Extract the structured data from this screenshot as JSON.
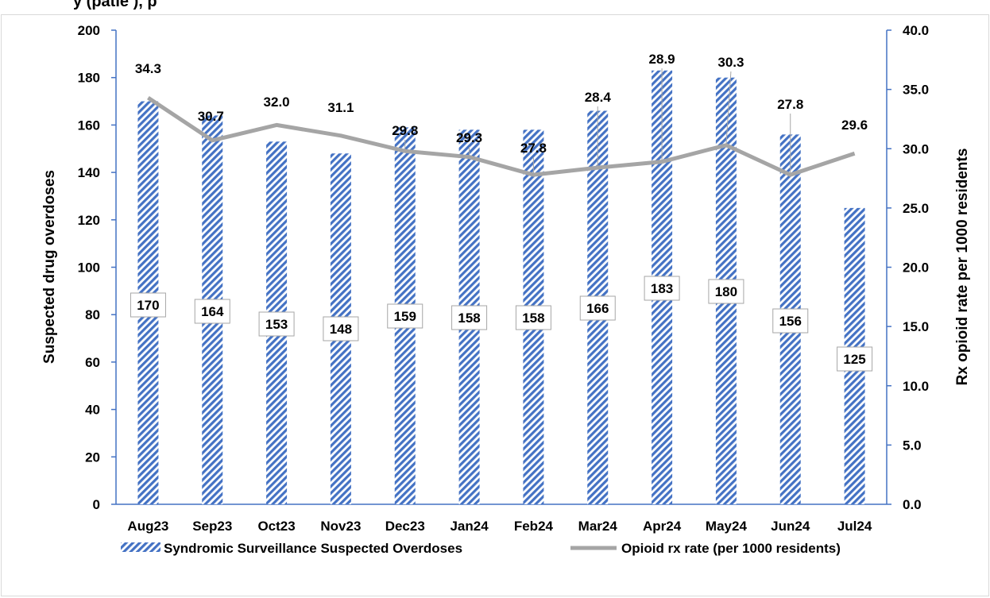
{
  "top_title_fragment": "y (patie         ), p",
  "chart_data": {
    "type": "bar",
    "categories": [
      "Aug23",
      "Sep23",
      "Oct23",
      "Nov23",
      "Dec23",
      "Jan24",
      "Feb24",
      "Mar24",
      "Apr24",
      "May24",
      "Jun24",
      "Jul24"
    ],
    "series": [
      {
        "name": "Syndromic Surveillance Suspected Overdoses",
        "type": "bar",
        "axis": "left",
        "values": [
          170,
          164,
          153,
          148,
          159,
          158,
          158,
          166,
          183,
          180,
          156,
          125
        ],
        "color": "#4472C4"
      },
      {
        "name": "Opioid rx rate (per 1000 residents)",
        "type": "line",
        "axis": "right",
        "values": [
          34.3,
          30.7,
          32.0,
          31.1,
          29.8,
          29.3,
          27.8,
          28.4,
          28.9,
          30.3,
          27.8,
          29.6
        ],
        "labels": [
          "34.3",
          "30.7",
          "32.0",
          "31.1",
          "29.8",
          "29.3",
          "27.8",
          "28.4",
          "28.9",
          "30.3",
          "27.8",
          "29.6"
        ],
        "color": "#A5A5A5"
      }
    ],
    "ylabel": "Suspected drug overdoses",
    "y2label": "Rx opioid rate per 1000 residents",
    "ylim": [
      0,
      200
    ],
    "y2lim": [
      0,
      40
    ],
    "yticks": [
      "0",
      "20",
      "40",
      "60",
      "80",
      "100",
      "120",
      "140",
      "160",
      "180",
      "200"
    ],
    "y2ticks": [
      "0.0",
      "5.0",
      "10.0",
      "15.0",
      "20.0",
      "25.0",
      "30.0",
      "35.0",
      "40.0"
    ],
    "grid": false,
    "legend": "bottom"
  }
}
